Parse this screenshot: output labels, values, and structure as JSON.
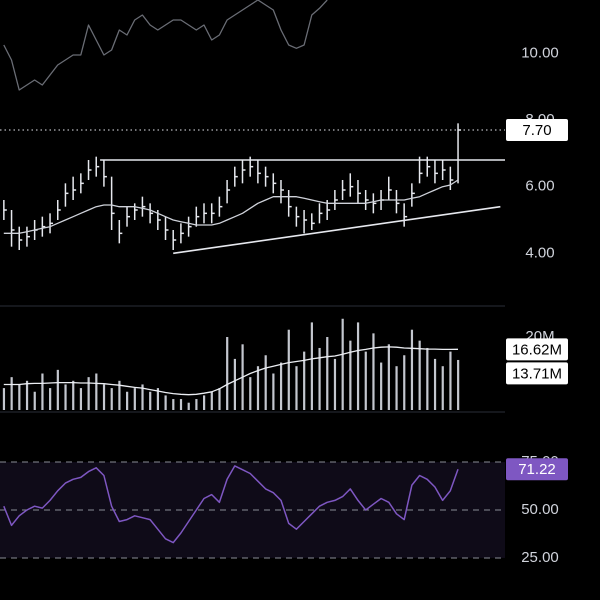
{
  "chart_data": [
    {
      "type": "ohlc",
      "color": "#e6e8ee",
      "xlim": [
        -0.5,
        65.1
      ],
      "ylim": [
        2.6,
        11.6
      ],
      "yticks": [
        {
          "value": 4,
          "label": "4.00"
        },
        {
          "value": 6,
          "label": "6.00"
        },
        {
          "value": 8,
          "label": "8.00"
        },
        {
          "value": 10,
          "label": "10.00"
        }
      ],
      "high": [
        5.6,
        5.3,
        4.8,
        4.8,
        5.0,
        5.1,
        5.2,
        5.6,
        6.1,
        6.3,
        6.4,
        6.8,
        6.9,
        6.8,
        6.3,
        5.0,
        5.4,
        5.5,
        5.7,
        5.5,
        5.3,
        5.1,
        4.7,
        4.9,
        5.1,
        5.4,
        5.5,
        5.5,
        5.7,
        6.2,
        6.6,
        6.8,
        6.9,
        6.8,
        6.6,
        6.4,
        6.2,
        5.9,
        5.4,
        5.3,
        5.2,
        5.5,
        5.6,
        5.9,
        6.2,
        6.4,
        6.2,
        5.9,
        5.8,
        5.9,
        6.3,
        5.9,
        5.5,
        6.1,
        6.9,
        6.9,
        6.8,
        6.8,
        6.6,
        7.9
      ],
      "low": [
        5.0,
        4.2,
        4.1,
        4.2,
        4.4,
        4.5,
        4.6,
        5.0,
        5.4,
        5.6,
        5.8,
        6.2,
        6.3,
        6.0,
        4.7,
        4.3,
        4.8,
        5.0,
        5.1,
        4.9,
        4.7,
        4.4,
        4.1,
        4.3,
        4.5,
        4.8,
        4.9,
        4.9,
        5.1,
        5.5,
        6.0,
        6.1,
        6.3,
        6.1,
        6.0,
        5.8,
        5.5,
        5.1,
        4.8,
        4.6,
        4.7,
        4.9,
        5.0,
        5.3,
        5.6,
        5.7,
        5.5,
        5.3,
        5.2,
        5.3,
        5.6,
        5.2,
        4.8,
        5.4,
        6.1,
        6.3,
        6.1,
        6.2,
        5.9,
        6.1
      ],
      "close": [
        5.3,
        4.7,
        4.4,
        4.5,
        4.7,
        4.8,
        4.9,
        5.3,
        5.8,
        5.9,
        6.1,
        6.5,
        6.6,
        6.3,
        5.2,
        4.6,
        5.1,
        5.3,
        5.4,
        5.2,
        5.0,
        4.7,
        4.4,
        4.6,
        4.8,
        5.1,
        5.2,
        5.2,
        5.4,
        5.9,
        6.3,
        6.5,
        6.6,
        6.4,
        6.3,
        6.1,
        5.9,
        5.4,
        5.1,
        5.0,
        4.9,
        5.2,
        5.3,
        5.6,
        5.9,
        6.0,
        5.8,
        5.6,
        5.5,
        5.6,
        5.9,
        5.5,
        5.1,
        5.8,
        6.4,
        6.6,
        6.4,
        6.5,
        6.2,
        7.7
      ],
      "close_label": "7.70",
      "series": [
        {
          "color": "#cfd2da",
          "values": [
            4.6,
            4.6,
            4.6,
            4.65,
            4.7,
            4.75,
            4.8,
            4.9,
            5.0,
            5.1,
            5.2,
            5.3,
            5.4,
            5.45,
            5.45,
            5.4,
            5.4,
            5.4,
            5.35,
            5.3,
            5.2,
            5.1,
            5.0,
            4.95,
            4.9,
            4.85,
            4.85,
            4.85,
            4.9,
            5.0,
            5.1,
            5.2,
            5.35,
            5.5,
            5.6,
            5.7,
            5.7,
            5.7,
            5.7,
            5.65,
            5.6,
            5.55,
            5.5,
            5.5,
            5.5,
            5.5,
            5.5,
            5.5,
            5.55,
            5.6,
            5.6,
            5.6,
            5.6,
            5.65,
            5.7,
            5.8,
            5.9,
            6.0,
            6.05,
            6.2
          ]
        },
        {
          "color": "#6a6d75",
          "values": [
            10.25,
            9.8,
            8.9,
            9.05,
            9.2,
            9.05,
            9.35,
            9.65,
            9.8,
            9.95,
            9.95,
            10.85,
            10.4,
            9.95,
            10.1,
            10.7,
            10.55,
            11.0,
            11.15,
            10.85,
            10.7,
            10.85,
            11.0,
            11.0,
            10.85,
            10.7,
            10.85,
            10.4,
            10.55,
            11.0,
            11.15,
            11.3,
            11.45,
            11.6,
            11.45,
            11.3,
            10.7,
            10.25,
            10.15,
            10.25,
            11.15,
            11.35,
            11.6,
            null,
            null,
            null,
            null,
            null,
            null,
            null,
            null,
            null,
            null,
            null,
            null,
            null,
            null,
            null,
            null,
            null
          ]
        }
      ],
      "line_color": "#e6e8ee",
      "lines": [
        {
          "x": [
            12.5,
            65.1
          ],
          "y": [
            6.8,
            6.8
          ]
        },
        {
          "x": [
            22,
            64.5
          ],
          "y": [
            4.0,
            5.4
          ]
        }
      ]
    },
    {
      "type": "bar",
      "color": "#c4c7cf",
      "xlim": [
        -0.5,
        65.1
      ],
      "ylim": [
        0,
        27.4
      ],
      "yticks": [
        {
          "value": 20,
          "label": "20M"
        }
      ],
      "values": [
        6,
        9,
        7,
        8,
        5,
        10,
        6,
        11,
        7,
        8,
        6,
        9,
        10,
        7,
        6,
        8,
        5,
        6,
        7,
        5,
        6,
        4,
        3,
        3,
        2,
        3,
        4,
        5,
        6,
        20,
        14,
        18,
        9,
        12,
        15,
        10,
        13,
        22,
        12,
        16,
        24,
        17,
        20,
        14,
        25,
        19,
        24,
        16,
        21,
        13,
        18,
        12,
        15,
        22,
        19,
        17,
        14,
        12,
        16,
        13.71
      ],
      "value_label": "13.71M",
      "series": [
        {
          "color": "#eceef3",
          "values": [
            7,
            7,
            7,
            7.2,
            7.3,
            7.3,
            7.4,
            7.5,
            7.5,
            7.5,
            7.4,
            7.4,
            7.3,
            7.2,
            7,
            6.8,
            6.5,
            6.2,
            6,
            5.6,
            5.2,
            4.8,
            4.5,
            4.3,
            4.2,
            4.3,
            4.6,
            5,
            5.8,
            7,
            8,
            9,
            10,
            10.8,
            11.5,
            12,
            12.5,
            13,
            13.3,
            13.6,
            14,
            14.3,
            14.6,
            14.8,
            15.3,
            15.8,
            16.3,
            16.6,
            17,
            17.2,
            17.3,
            17.2,
            17,
            16.9,
            16.8,
            16.7,
            16.7,
            16.6,
            16.6,
            16.62
          ],
          "value_label": "16.62M"
        }
      ]
    },
    {
      "type": "line",
      "color": "#7e57c2",
      "xlim": [
        -0.5,
        65.1
      ],
      "ylim": [
        3.1,
        96.9
      ],
      "yticks": [
        {
          "value": 25,
          "label": "25.00"
        },
        {
          "value": 50,
          "label": "50.00"
        },
        {
          "value": 75,
          "label": "75.00"
        }
      ],
      "grid": true,
      "band_color": "#7e57c2",
      "values": [
        52,
        42,
        47,
        50,
        52,
        51,
        55,
        60,
        64,
        66,
        67,
        70,
        72,
        68,
        52,
        44,
        45,
        47,
        46,
        45,
        40,
        35,
        33,
        38,
        44,
        50,
        56,
        58,
        54,
        66,
        73,
        71,
        69,
        65,
        61,
        59,
        55,
        43,
        40,
        44,
        48,
        52,
        54,
        55,
        57,
        61,
        55,
        50,
        53,
        56,
        54,
        48,
        45,
        63,
        68,
        66,
        62,
        55,
        60,
        71.22
      ]
    }
  ]
}
